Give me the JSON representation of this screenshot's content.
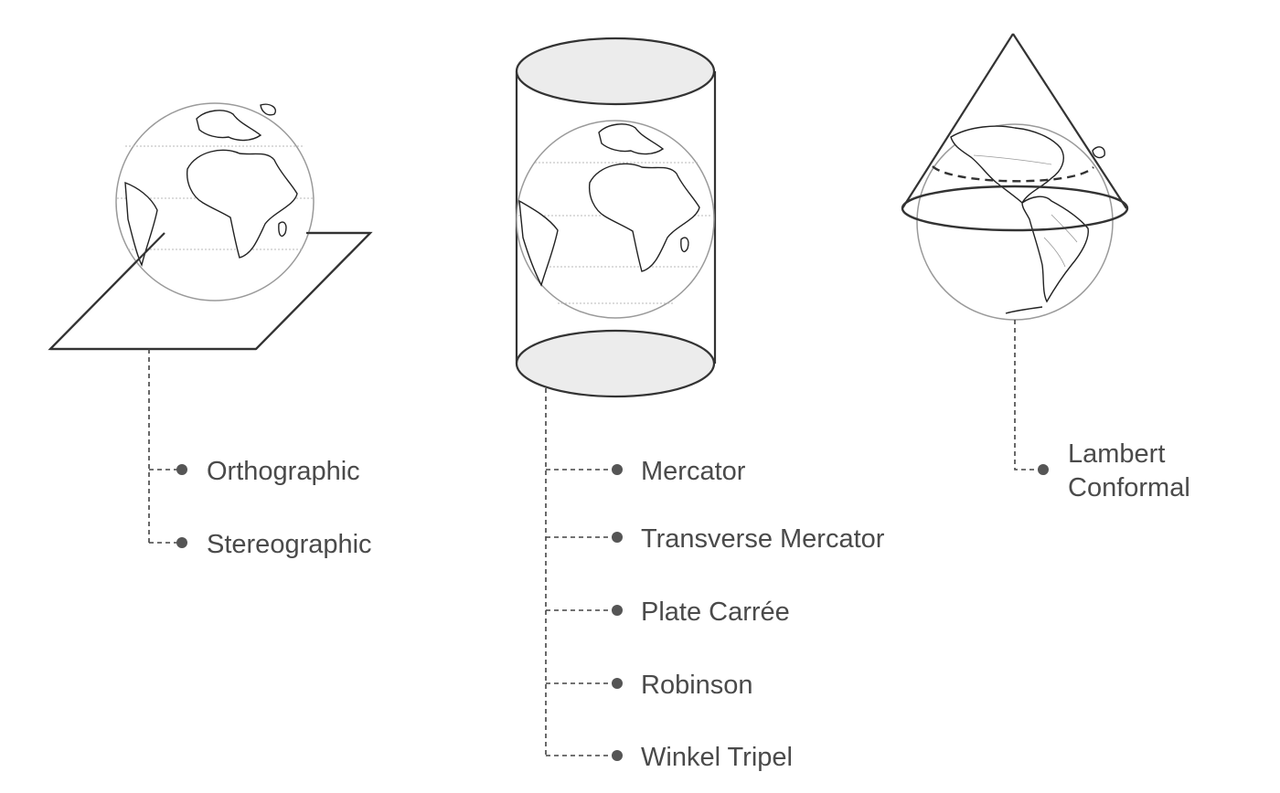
{
  "groups": [
    {
      "id": "planar",
      "surface": "plane",
      "labels": [
        "Orthographic",
        "Stereographic"
      ]
    },
    {
      "id": "cylindrical",
      "surface": "cylinder",
      "labels": [
        "Mercator",
        "Transverse Mercator",
        "Plate Carrée",
        "Robinson",
        "Winkel Tripel"
      ]
    },
    {
      "id": "conic",
      "surface": "cone",
      "labels": [
        "Lambert",
        "Conformal"
      ]
    }
  ],
  "colors": {
    "line": "#333333",
    "text": "#4a4a4a",
    "cylinder_cap": "#ececec",
    "globe_outline": "#9a9a9a"
  }
}
